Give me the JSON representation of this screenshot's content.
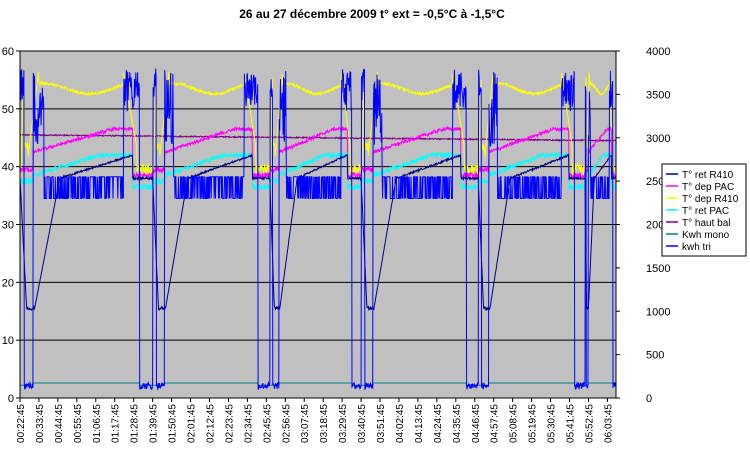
{
  "colors": {
    "plot_background": "#C0C0C0",
    "gridline": "#000000",
    "series": {
      "ret_r410": "#000080",
      "dep_pac": "#FF00FF",
      "dep_r410": "#FFFF00",
      "ret_pac": "#00FFFF",
      "haut_bal": "#800080",
      "kwh_mono": "#008080",
      "kwh_tri": "#0000FF"
    }
  },
  "chart_data": {
    "type": "line",
    "title": "26 au 27 décembre 2009  t° ext = -0,5°C à -1,5°C",
    "xlabel": "",
    "ylabel": "",
    "grid": "horizontal",
    "legend_position": "right",
    "left_axis": {
      "range": [
        0,
        60
      ],
      "ticks": [
        "0",
        "10",
        "20",
        "30",
        "40",
        "50",
        "60"
      ]
    },
    "right_axis": {
      "range": [
        0,
        4000
      ],
      "ticks": [
        "0",
        "500",
        "1000",
        "1500",
        "2000",
        "2500",
        "3000",
        "3500",
        "4000"
      ]
    },
    "x_start": "00:22:45",
    "x_end": "06:08:45",
    "x_tick_labels": [
      "00:22:45",
      "00:33:45",
      "00:44:45",
      "00:55:45",
      "01:06:45",
      "01:17:45",
      "01:28:45",
      "01:39:45",
      "01:50:45",
      "02:01:45",
      "02:12:45",
      "02:23:45",
      "02:34:45",
      "02:45:45",
      "02:56:45",
      "03:07:45",
      "03:18:45",
      "03:29:45",
      "03:40:45",
      "03:51:45",
      "04:02:45",
      "04:13:45",
      "04:24:45",
      "04:35:45",
      "04:46:45",
      "04:57:45",
      "05:08:45",
      "05:19:45",
      "05:30:45",
      "05:41:45",
      "05:52:45",
      "06:03:45"
    ],
    "series_style": {
      "dep_r410": {
        "peak": 56.5,
        "trough": 35.5
      },
      "dep_pac": {
        "peak": 46.5,
        "trough": 38.5
      },
      "ret_r410": {
        "peak": 42,
        "trough": 15.5,
        "base": 38
      },
      "ret_pac": {
        "peak": 42,
        "trough": 35.5
      },
      "haut_bal": {
        "start": 45.5,
        "end": 44.5
      },
      "kwh_mono": {
        "low": 2.2,
        "high": 2.6
      },
      "kwh_tri": {
        "on_high": 3800,
        "on_mid": 2300,
        "off": 100
      }
    },
    "cycles": [
      {
        "start": "00:22:45",
        "end": "01:39:45"
      },
      {
        "start": "01:39:45",
        "end": "02:47:45"
      },
      {
        "start": "02:47:45",
        "end": "03:40:45"
      },
      {
        "start": "03:40:45",
        "end": "04:48:45"
      },
      {
        "start": "04:48:45",
        "end": "05:50:45"
      },
      {
        "start": "05:50:45",
        "end": "06:08:45"
      }
    ],
    "series": [
      {
        "key": "ret_r410",
        "name": "T° ret R410",
        "axis": "left"
      },
      {
        "key": "dep_pac",
        "name": "T° dep PAC",
        "axis": "left"
      },
      {
        "key": "dep_r410",
        "name": "T° dep R410",
        "axis": "left"
      },
      {
        "key": "ret_pac",
        "name": "T° ret PAC",
        "axis": "left"
      },
      {
        "key": "haut_bal",
        "name": "T° haut bal",
        "axis": "left"
      },
      {
        "key": "kwh_mono",
        "name": "Kwh mono",
        "axis": "right"
      },
      {
        "key": "kwh_tri",
        "name": "kwh tri",
        "axis": "right"
      }
    ]
  }
}
